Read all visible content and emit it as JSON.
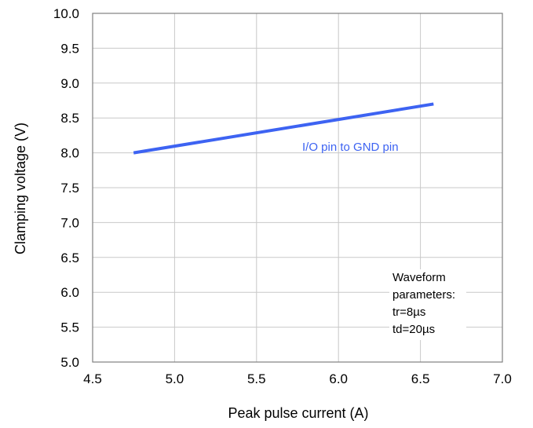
{
  "chart_data": {
    "type": "line",
    "title": "",
    "xlabel": "Peak pulse current (A)",
    "ylabel": "Clamping voltage (V)",
    "xlim": [
      4.5,
      7.0
    ],
    "ylim": [
      5.0,
      10.0
    ],
    "x_ticks": [
      "4.5",
      "5.0",
      "5.5",
      "6.0",
      "6.5",
      "7.0"
    ],
    "y_ticks": [
      "5.0",
      "5.5",
      "6.0",
      "6.5",
      "7.0",
      "7.5",
      "8.0",
      "8.5",
      "9.0",
      "9.5",
      "10.0"
    ],
    "grid": true,
    "series": [
      {
        "name": "I/O pin to GND pin",
        "color": "#3d63f2",
        "x": [
          4.75,
          6.58
        ],
        "y": [
          8.0,
          8.7
        ]
      }
    ],
    "annotation": {
      "lines": [
        "Waveform",
        "parameters:",
        "tr=8µs",
        "td=20µs"
      ]
    }
  }
}
